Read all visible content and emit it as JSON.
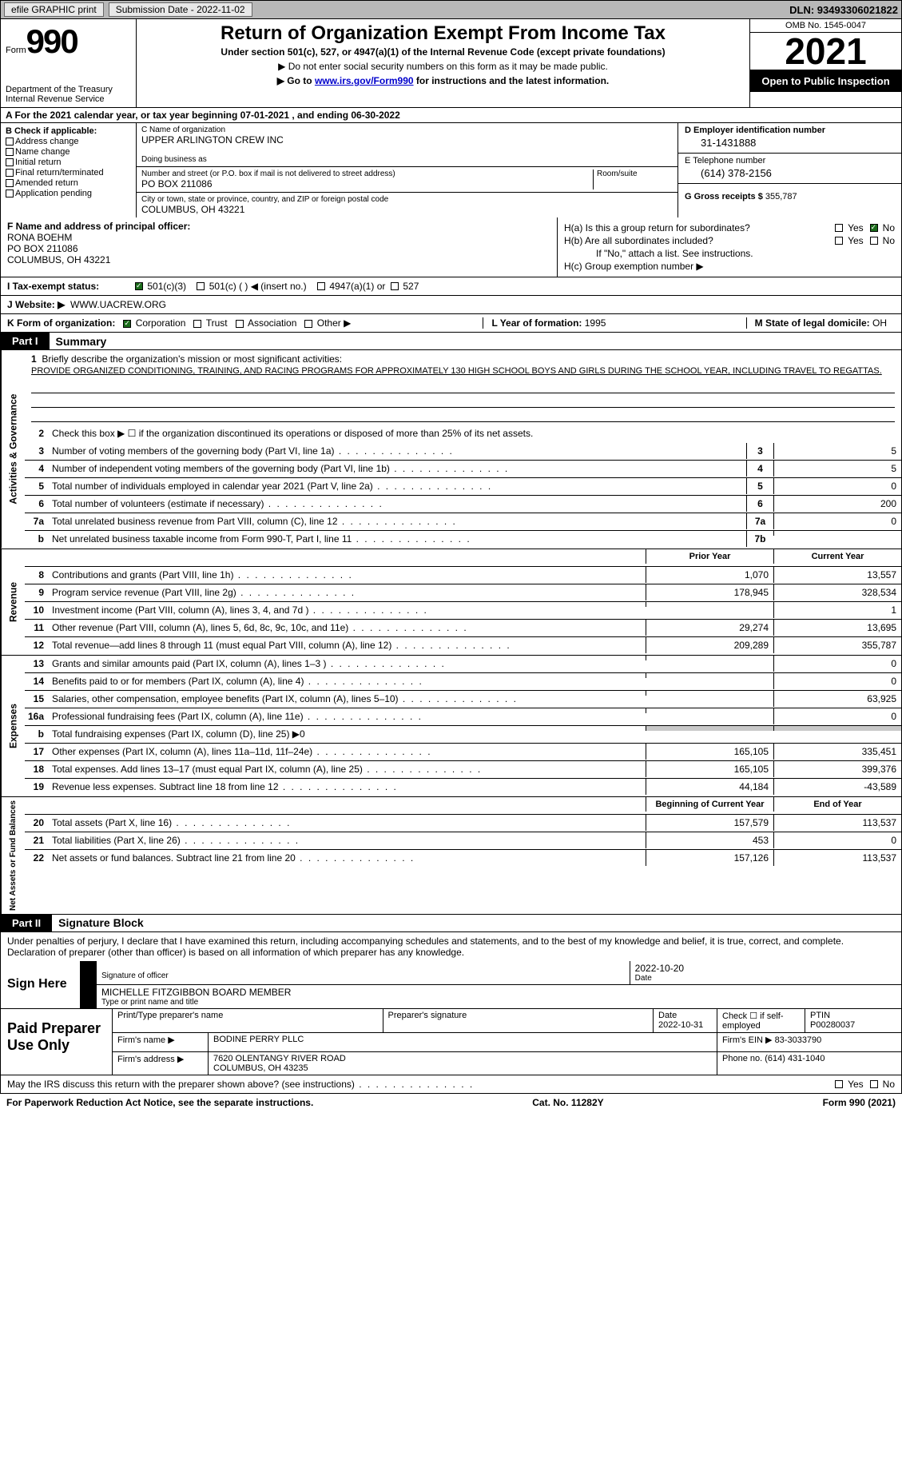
{
  "topbar": {
    "efile": "efile GRAPHIC print",
    "submission": "Submission Date - 2022-11-02",
    "dln": "DLN: 93493306021822"
  },
  "header": {
    "form_prefix": "Form",
    "form_num": "990",
    "dept": "Department of the Treasury\nInternal Revenue Service",
    "title": "Return of Organization Exempt From Income Tax",
    "subtitle": "Under section 501(c), 527, or 4947(a)(1) of the Internal Revenue Code (except private foundations)",
    "note1": "▶ Do not enter social security numbers on this form as it may be made public.",
    "note2_pre": "▶ Go to ",
    "note2_link": "www.irs.gov/Form990",
    "note2_post": " for instructions and the latest information.",
    "omb": "OMB No. 1545-0047",
    "year": "2021",
    "open": "Open to Public Inspection"
  },
  "row_a": "A For the 2021 calendar year, or tax year beginning 07-01-2021    , and ending 06-30-2022",
  "col_b": {
    "label": "B Check if applicable:",
    "opts": [
      "Address change",
      "Name change",
      "Initial return",
      "Final return/terminated",
      "Amended return",
      "Application pending"
    ]
  },
  "col_c": {
    "name_label": "C Name of organization",
    "name": "UPPER ARLINGTON CREW INC",
    "dba_label": "Doing business as",
    "dba": "",
    "addr_label": "Number and street (or P.O. box if mail is not delivered to street address)",
    "room_label": "Room/suite",
    "addr": "PO BOX 211086",
    "city_label": "City or town, state or province, country, and ZIP or foreign postal code",
    "city": "COLUMBUS, OH  43221"
  },
  "col_d": {
    "ein_label": "D Employer identification number",
    "ein": "31-1431888",
    "tel_label": "E Telephone number",
    "tel": "(614) 378-2156",
    "gross_label": "G Gross receipts $",
    "gross": "355,787"
  },
  "col_f": {
    "label": "F Name and address of principal officer:",
    "name": "RONA BOEHM",
    "addr1": "PO BOX 211086",
    "addr2": "COLUMBUS, OH  43221"
  },
  "col_h": {
    "a_label": "H(a)  Is this a group return for subordinates?",
    "b_label": "H(b)  Are all subordinates included?",
    "b_note": "If \"No,\" attach a list. See instructions.",
    "c_label": "H(c)  Group exemption number ▶",
    "yes": "Yes",
    "no": "No"
  },
  "row_i": {
    "label": "I   Tax-exempt status:",
    "o1": "501(c)(3)",
    "o2": "501(c) (  ) ◀ (insert no.)",
    "o3": "4947(a)(1) or",
    "o4": "527"
  },
  "row_j": {
    "label": "J   Website: ▶",
    "val": "WWW.UACREW.ORG"
  },
  "row_k": {
    "label": "K Form of organization:",
    "o1": "Corporation",
    "o2": "Trust",
    "o3": "Association",
    "o4": "Other ▶",
    "l_label": "L Year of formation:",
    "l_val": "1995",
    "m_label": "M State of legal domicile:",
    "m_val": "OH"
  },
  "parts": {
    "p1": "Part I",
    "p1_title": "Summary",
    "p2": "Part II",
    "p2_title": "Signature Block"
  },
  "summary": {
    "s1_label": "Briefly describe the organization's mission or most significant activities:",
    "s1_text": "PROVIDE ORGANIZED CONDITIONING, TRAINING, AND RACING PROGRAMS FOR APPROXIMATELY 130 HIGH SCHOOL BOYS AND GIRLS DURING THE SCHOOL YEAR, INCLUDING TRAVEL TO REGATTAS.",
    "s2_label": "Check this box ▶ ☐ if the organization discontinued its operations or disposed of more than 25% of its net assets.",
    "lines_gov": [
      {
        "n": "3",
        "d": "Number of voting members of the governing body (Part VI, line 1a)",
        "c": "3",
        "v": "5"
      },
      {
        "n": "4",
        "d": "Number of independent voting members of the governing body (Part VI, line 1b)",
        "c": "4",
        "v": "5"
      },
      {
        "n": "5",
        "d": "Total number of individuals employed in calendar year 2021 (Part V, line 2a)",
        "c": "5",
        "v": "0"
      },
      {
        "n": "6",
        "d": "Total number of volunteers (estimate if necessary)",
        "c": "6",
        "v": "200"
      },
      {
        "n": "7a",
        "d": "Total unrelated business revenue from Part VIII, column (C), line 12",
        "c": "7a",
        "v": "0"
      },
      {
        "n": "b",
        "d": "Net unrelated business taxable income from Form 990-T, Part I, line 11",
        "c": "7b",
        "v": ""
      }
    ],
    "hdr_prior": "Prior Year",
    "hdr_current": "Current Year",
    "lines_rev": [
      {
        "n": "8",
        "d": "Contributions and grants (Part VIII, line 1h)",
        "p": "1,070",
        "c": "13,557"
      },
      {
        "n": "9",
        "d": "Program service revenue (Part VIII, line 2g)",
        "p": "178,945",
        "c": "328,534"
      },
      {
        "n": "10",
        "d": "Investment income (Part VIII, column (A), lines 3, 4, and 7d )",
        "p": "",
        "c": "1"
      },
      {
        "n": "11",
        "d": "Other revenue (Part VIII, column (A), lines 5, 6d, 8c, 9c, 10c, and 11e)",
        "p": "29,274",
        "c": "13,695"
      },
      {
        "n": "12",
        "d": "Total revenue—add lines 8 through 11 (must equal Part VIII, column (A), line 12)",
        "p": "209,289",
        "c": "355,787"
      }
    ],
    "lines_exp": [
      {
        "n": "13",
        "d": "Grants and similar amounts paid (Part IX, column (A), lines 1–3 )",
        "p": "",
        "c": "0"
      },
      {
        "n": "14",
        "d": "Benefits paid to or for members (Part IX, column (A), line 4)",
        "p": "",
        "c": "0"
      },
      {
        "n": "15",
        "d": "Salaries, other compensation, employee benefits (Part IX, column (A), lines 5–10)",
        "p": "",
        "c": "63,925"
      },
      {
        "n": "16a",
        "d": "Professional fundraising fees (Part IX, column (A), line 11e)",
        "p": "",
        "c": "0"
      },
      {
        "n": "b",
        "d": "Total fundraising expenses (Part IX, column (D), line 25) ▶0",
        "p": "shaded",
        "c": "shaded"
      },
      {
        "n": "17",
        "d": "Other expenses (Part IX, column (A), lines 11a–11d, 11f–24e)",
        "p": "165,105",
        "c": "335,451"
      },
      {
        "n": "18",
        "d": "Total expenses. Add lines 13–17 (must equal Part IX, column (A), line 25)",
        "p": "165,105",
        "c": "399,376"
      },
      {
        "n": "19",
        "d": "Revenue less expenses. Subtract line 18 from line 12",
        "p": "44,184",
        "c": "-43,589"
      }
    ],
    "hdr_begin": "Beginning of Current Year",
    "hdr_end": "End of Year",
    "lines_net": [
      {
        "n": "20",
        "d": "Total assets (Part X, line 16)",
        "p": "157,579",
        "c": "113,537"
      },
      {
        "n": "21",
        "d": "Total liabilities (Part X, line 26)",
        "p": "453",
        "c": "0"
      },
      {
        "n": "22",
        "d": "Net assets or fund balances. Subtract line 21 from line 20",
        "p": "157,126",
        "c": "113,537"
      }
    ],
    "vside1": "Activities & Governance",
    "vside2": "Revenue",
    "vside3": "Expenses",
    "vside4": "Net Assets or Fund Balances"
  },
  "sig": {
    "intro": "Under penalties of perjury, I declare that I have examined this return, including accompanying schedules and statements, and to the best of my knowledge and belief, it is true, correct, and complete. Declaration of preparer (other than officer) is based on all information of which preparer has any knowledge.",
    "sign_here": "Sign Here",
    "sig_officer": "Signature of officer",
    "date": "Date",
    "date_val": "2022-10-20",
    "name_val": "MICHELLE FITZGIBBON  BOARD MEMBER",
    "name_label": "Type or print name and title"
  },
  "prep": {
    "label": "Paid Preparer Use Only",
    "h1": "Print/Type preparer's name",
    "h2": "Preparer's signature",
    "h3": "Date",
    "h3_val": "2022-10-31",
    "h4": "Check ☐ if self-employed",
    "h5": "PTIN",
    "h5_val": "P00280037",
    "firm_name_l": "Firm's name    ▶",
    "firm_name": "BODINE PERRY PLLC",
    "firm_ein_l": "Firm's EIN ▶",
    "firm_ein": "83-3033790",
    "firm_addr_l": "Firm's address ▶",
    "firm_addr": "7620 OLENTANGY RIVER ROAD",
    "firm_city": "COLUMBUS, OH  43235",
    "phone_l": "Phone no.",
    "phone": "(614) 431-1040"
  },
  "footer": {
    "discuss": "May the IRS discuss this return with the preparer shown above? (see instructions)",
    "yes": "Yes",
    "no": "No",
    "paperwork": "For Paperwork Reduction Act Notice, see the separate instructions.",
    "cat": "Cat. No. 11282Y",
    "form": "Form 990 (2021)"
  }
}
